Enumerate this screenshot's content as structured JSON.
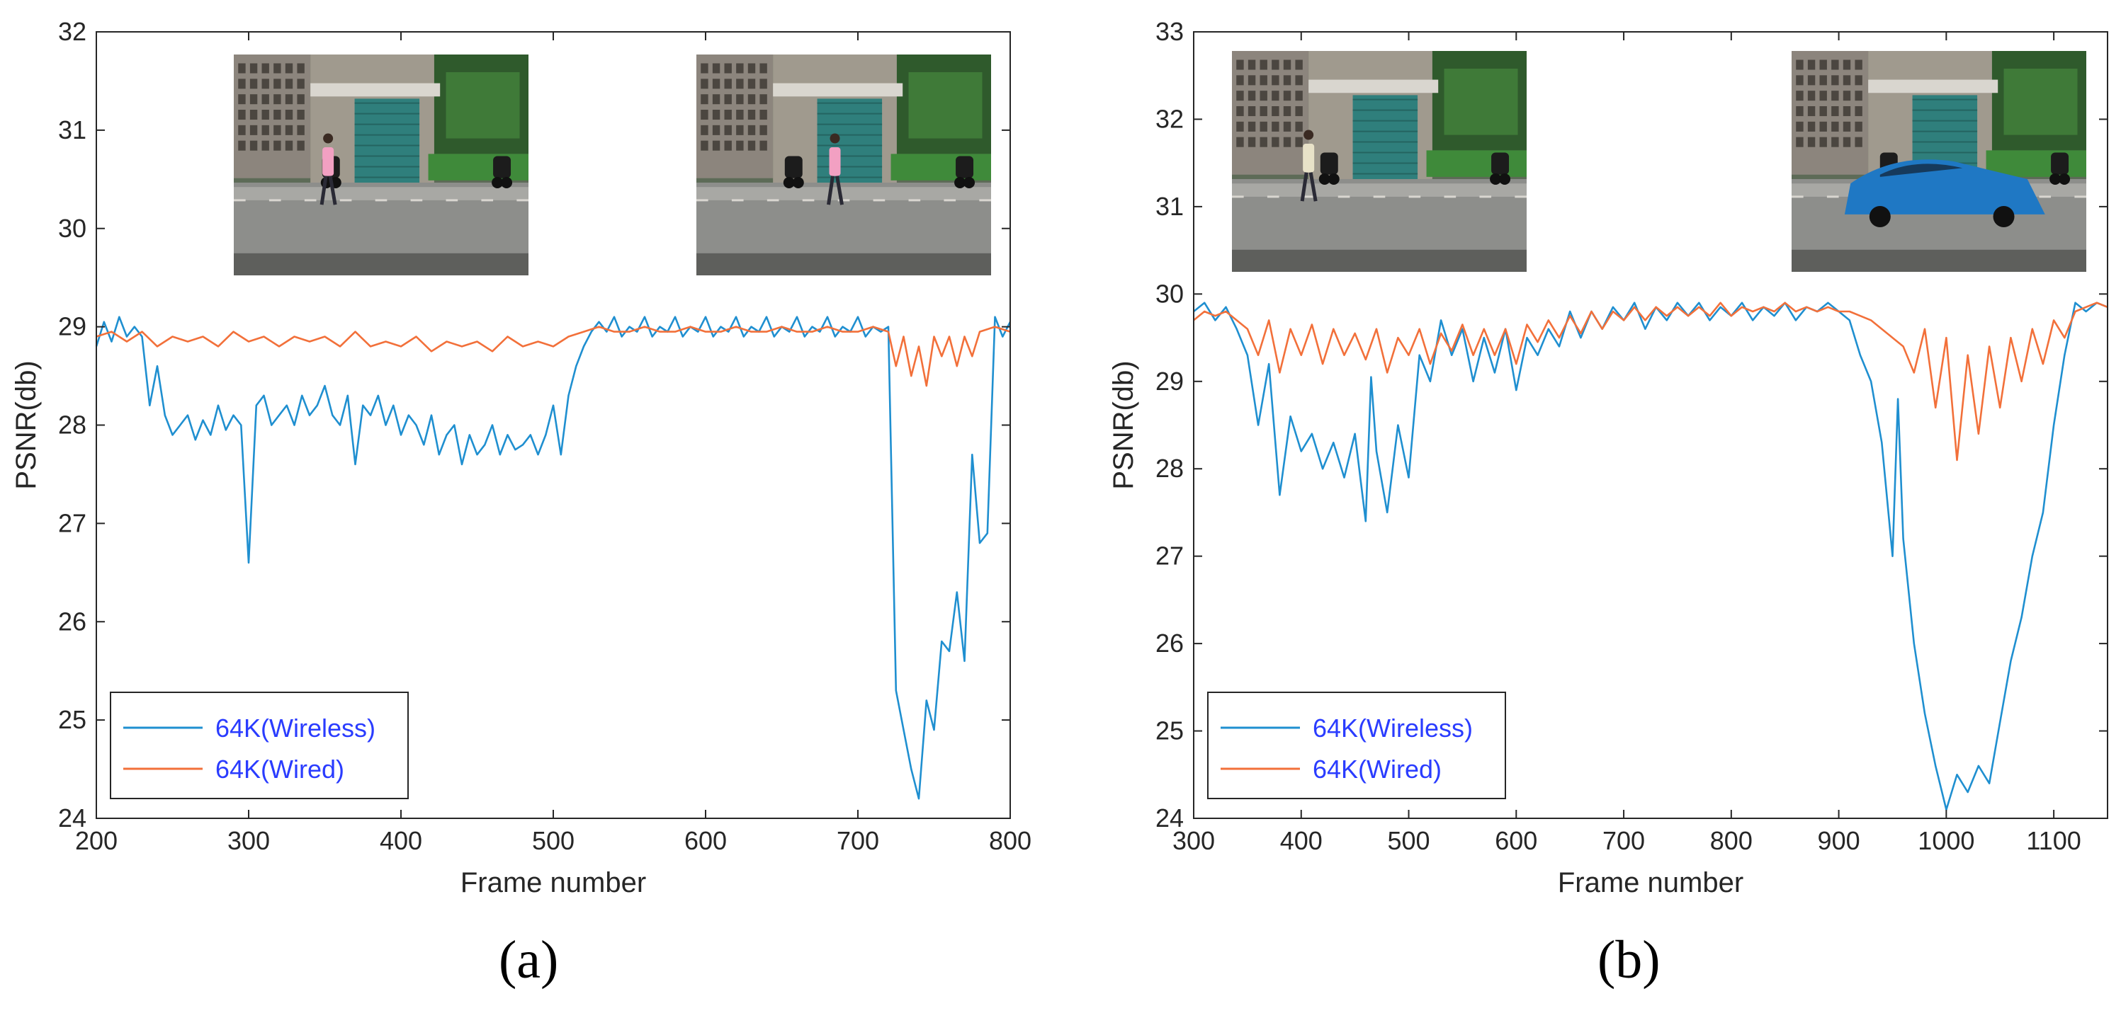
{
  "figure": {
    "panel_a_caption": "(a)",
    "panel_b_caption": "(b)"
  },
  "colors": {
    "wireless": "#1f8fd0",
    "wired": "#f2703a",
    "legend_text": "#2a3cff",
    "axis": "#262626"
  },
  "chart_data": [
    {
      "type": "line",
      "panel": "a",
      "title": "",
      "xlabel": "Frame number",
      "ylabel": "PSNR(db)",
      "xlim": [
        200,
        800
      ],
      "ylim": [
        24,
        32
      ],
      "xticks": [
        200,
        300,
        400,
        500,
        600,
        700,
        800
      ],
      "yticks": [
        24,
        25,
        26,
        27,
        28,
        29,
        30,
        31,
        32
      ],
      "legend_position": "bottom-left",
      "inset_images": [
        "pedestrian-scene-frame",
        "running-person-scene-frame"
      ],
      "series": [
        {
          "name": "64K(Wireless)",
          "color": "#1f8fd0",
          "x": [
            200,
            205,
            210,
            215,
            220,
            225,
            230,
            235,
            240,
            245,
            250,
            255,
            260,
            265,
            270,
            275,
            280,
            285,
            290,
            295,
            300,
            305,
            310,
            315,
            320,
            325,
            330,
            335,
            340,
            345,
            350,
            355,
            360,
            365,
            370,
            375,
            380,
            385,
            390,
            395,
            400,
            405,
            410,
            415,
            420,
            425,
            430,
            435,
            440,
            445,
            450,
            455,
            460,
            465,
            470,
            475,
            480,
            485,
            490,
            495,
            500,
            505,
            510,
            515,
            520,
            525,
            530,
            535,
            540,
            545,
            550,
            555,
            560,
            565,
            570,
            575,
            580,
            585,
            590,
            595,
            600,
            605,
            610,
            615,
            620,
            625,
            630,
            635,
            640,
            645,
            650,
            655,
            660,
            665,
            670,
            675,
            680,
            685,
            690,
            695,
            700,
            705,
            710,
            715,
            720,
            725,
            730,
            735,
            740,
            745,
            750,
            755,
            760,
            765,
            770,
            775,
            780,
            785,
            790,
            795,
            800
          ],
          "y": [
            28.8,
            29.05,
            28.85,
            29.1,
            28.9,
            29.0,
            28.9,
            28.2,
            28.6,
            28.1,
            27.9,
            28.0,
            28.1,
            27.85,
            28.05,
            27.9,
            28.2,
            27.95,
            28.1,
            28.0,
            26.6,
            28.2,
            28.3,
            28.0,
            28.1,
            28.2,
            28.0,
            28.3,
            28.1,
            28.2,
            28.4,
            28.1,
            28.0,
            28.3,
            27.6,
            28.2,
            28.1,
            28.3,
            28.0,
            28.2,
            27.9,
            28.1,
            28.0,
            27.8,
            28.1,
            27.7,
            27.9,
            28.0,
            27.6,
            27.9,
            27.7,
            27.8,
            28.0,
            27.7,
            27.9,
            27.75,
            27.8,
            27.9,
            27.7,
            27.9,
            28.2,
            27.7,
            28.3,
            28.6,
            28.8,
            28.95,
            29.05,
            28.95,
            29.1,
            28.9,
            29.0,
            28.95,
            29.1,
            28.9,
            29.0,
            28.95,
            29.1,
            28.9,
            29.0,
            28.95,
            29.1,
            28.9,
            29.0,
            28.95,
            29.1,
            28.9,
            29.0,
            28.95,
            29.1,
            28.9,
            29.0,
            28.95,
            29.1,
            28.9,
            29.0,
            28.95,
            29.1,
            28.9,
            29.0,
            28.95,
            29.1,
            28.9,
            29.0,
            28.95,
            29.0,
            25.3,
            24.9,
            24.5,
            24.2,
            25.2,
            24.9,
            25.8,
            25.7,
            26.3,
            25.6,
            27.7,
            26.8,
            26.9,
            29.1,
            28.9,
            29.05
          ]
        },
        {
          "name": "64K(Wired)",
          "color": "#f2703a",
          "x": [
            200,
            210,
            220,
            230,
            240,
            250,
            260,
            270,
            280,
            290,
            300,
            310,
            320,
            330,
            340,
            350,
            360,
            370,
            380,
            390,
            400,
            410,
            420,
            430,
            440,
            450,
            460,
            470,
            480,
            490,
            500,
            510,
            520,
            530,
            540,
            550,
            560,
            570,
            580,
            590,
            600,
            610,
            620,
            630,
            640,
            650,
            660,
            670,
            680,
            690,
            700,
            710,
            720,
            725,
            730,
            735,
            740,
            745,
            750,
            755,
            760,
            765,
            770,
            775,
            780,
            790,
            800
          ],
          "y": [
            28.9,
            28.95,
            28.85,
            28.95,
            28.8,
            28.9,
            28.85,
            28.9,
            28.8,
            28.95,
            28.85,
            28.9,
            28.8,
            28.9,
            28.85,
            28.9,
            28.8,
            28.95,
            28.8,
            28.85,
            28.8,
            28.9,
            28.75,
            28.85,
            28.8,
            28.85,
            28.75,
            28.9,
            28.8,
            28.85,
            28.8,
            28.9,
            28.95,
            29.0,
            28.95,
            28.95,
            29.0,
            28.95,
            28.95,
            29.0,
            28.95,
            28.95,
            29.0,
            28.95,
            28.95,
            29.0,
            28.95,
            28.95,
            29.0,
            28.95,
            28.95,
            29.0,
            28.95,
            28.6,
            28.9,
            28.5,
            28.8,
            28.4,
            28.9,
            28.7,
            28.9,
            28.6,
            28.9,
            28.7,
            28.95,
            29.0,
            28.95
          ]
        }
      ]
    },
    {
      "type": "line",
      "panel": "b",
      "title": "",
      "xlabel": "Frame number",
      "ylabel": "PSNR(db)",
      "xlim": [
        300,
        1150
      ],
      "ylim": [
        24,
        33
      ],
      "xticks": [
        300,
        400,
        500,
        600,
        700,
        800,
        900,
        1000,
        1100
      ],
      "yticks": [
        24,
        25,
        26,
        27,
        28,
        29,
        30,
        31,
        32,
        33
      ],
      "legend_position": "bottom-left",
      "inset_images": [
        "walking-person-scene-frame",
        "blue-car-scene-frame"
      ],
      "series": [
        {
          "name": "64K(Wireless)",
          "color": "#1f8fd0",
          "x": [
            300,
            310,
            320,
            330,
            340,
            350,
            360,
            370,
            380,
            390,
            400,
            410,
            420,
            430,
            440,
            450,
            460,
            465,
            470,
            480,
            490,
            500,
            510,
            520,
            530,
            540,
            550,
            560,
            570,
            580,
            590,
            600,
            610,
            620,
            630,
            640,
            650,
            660,
            670,
            680,
            690,
            700,
            710,
            720,
            730,
            740,
            750,
            760,
            770,
            780,
            790,
            800,
            810,
            820,
            830,
            840,
            850,
            860,
            870,
            880,
            890,
            900,
            910,
            920,
            930,
            940,
            950,
            955,
            960,
            970,
            980,
            990,
            1000,
            1010,
            1020,
            1030,
            1040,
            1050,
            1060,
            1070,
            1080,
            1090,
            1100,
            1110,
            1120,
            1130,
            1140,
            1150
          ],
          "y": [
            29.8,
            29.9,
            29.7,
            29.85,
            29.6,
            29.3,
            28.5,
            29.2,
            27.7,
            28.6,
            28.2,
            28.4,
            28.0,
            28.3,
            27.9,
            28.4,
            27.4,
            29.05,
            28.2,
            27.5,
            28.5,
            27.9,
            29.3,
            29.0,
            29.7,
            29.3,
            29.6,
            29.0,
            29.5,
            29.1,
            29.6,
            28.9,
            29.5,
            29.3,
            29.6,
            29.4,
            29.8,
            29.5,
            29.8,
            29.6,
            29.85,
            29.7,
            29.9,
            29.6,
            29.85,
            29.7,
            29.9,
            29.75,
            29.9,
            29.7,
            29.85,
            29.75,
            29.9,
            29.7,
            29.85,
            29.75,
            29.9,
            29.7,
            29.85,
            29.8,
            29.9,
            29.8,
            29.7,
            29.3,
            29.0,
            28.3,
            27.0,
            28.8,
            27.2,
            26.0,
            25.2,
            24.6,
            24.1,
            24.5,
            24.3,
            24.6,
            24.4,
            25.1,
            25.8,
            26.3,
            27.0,
            27.5,
            28.5,
            29.3,
            29.9,
            29.8,
            29.9,
            29.85
          ]
        },
        {
          "name": "64K(Wired)",
          "color": "#f2703a",
          "x": [
            300,
            310,
            320,
            330,
            340,
            350,
            360,
            370,
            380,
            390,
            400,
            410,
            420,
            430,
            440,
            450,
            460,
            470,
            480,
            490,
            500,
            510,
            520,
            530,
            540,
            550,
            560,
            570,
            580,
            590,
            600,
            610,
            620,
            630,
            640,
            650,
            660,
            670,
            680,
            690,
            700,
            710,
            720,
            730,
            740,
            750,
            760,
            770,
            780,
            790,
            800,
            810,
            820,
            830,
            840,
            850,
            860,
            870,
            880,
            890,
            900,
            910,
            920,
            930,
            940,
            950,
            960,
            970,
            980,
            990,
            1000,
            1010,
            1020,
            1030,
            1040,
            1050,
            1060,
            1070,
            1080,
            1090,
            1100,
            1110,
            1120,
            1130,
            1140,
            1150
          ],
          "y": [
            29.7,
            29.8,
            29.75,
            29.8,
            29.7,
            29.6,
            29.3,
            29.7,
            29.1,
            29.6,
            29.3,
            29.65,
            29.2,
            29.6,
            29.3,
            29.55,
            29.25,
            29.6,
            29.1,
            29.5,
            29.3,
            29.6,
            29.2,
            29.55,
            29.35,
            29.65,
            29.3,
            29.6,
            29.3,
            29.6,
            29.2,
            29.65,
            29.45,
            29.7,
            29.5,
            29.75,
            29.55,
            29.8,
            29.6,
            29.8,
            29.7,
            29.85,
            29.7,
            29.85,
            29.75,
            29.85,
            29.75,
            29.85,
            29.75,
            29.9,
            29.75,
            29.85,
            29.8,
            29.85,
            29.8,
            29.9,
            29.8,
            29.85,
            29.8,
            29.85,
            29.8,
            29.8,
            29.75,
            29.7,
            29.6,
            29.5,
            29.4,
            29.1,
            29.6,
            28.7,
            29.5,
            28.1,
            29.3,
            28.4,
            29.4,
            28.7,
            29.5,
            29.0,
            29.6,
            29.2,
            29.7,
            29.5,
            29.8,
            29.85,
            29.9,
            29.85
          ]
        }
      ]
    }
  ]
}
